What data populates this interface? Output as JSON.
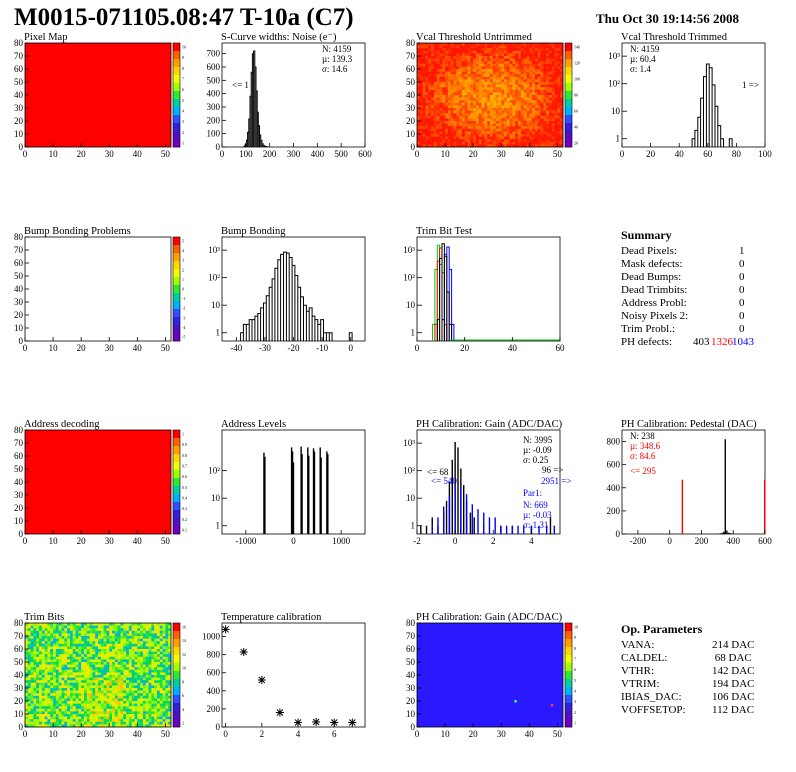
{
  "header": {
    "title": "M0015-071105.08:47 T-10a (C7)",
    "date": "Thu Oct 30 19:14:56 2008"
  },
  "colors": {
    "red": "#ff0000",
    "blue": "#0000ff",
    "green": "#00cc00",
    "black": "#000000",
    "map_dead": "#ff0000",
    "map_gain": "#2a18ff"
  },
  "chart_data": [
    {
      "id": "pixel_map",
      "type": "heatmap",
      "title": "Pixel Map",
      "xlim": [
        0,
        52
      ],
      "ylim": [
        0,
        80
      ],
      "xticks": [
        0,
        10,
        20,
        30,
        40,
        50
      ],
      "yticks": [
        0,
        10,
        20,
        30,
        40,
        50,
        60,
        70,
        80
      ],
      "fill": "uniform-red",
      "palette": "rainbow",
      "zticks": [
        "10",
        "9",
        "8",
        "7",
        "6",
        "5",
        "4",
        "3",
        "2",
        "1"
      ]
    },
    {
      "id": "scurve",
      "type": "histogram",
      "title": "S-Curve widths: Noise (e⁻)",
      "xlim": [
        0,
        600
      ],
      "ylim": [
        0,
        780
      ],
      "xticks": [
        0,
        100,
        200,
        300,
        400,
        500,
        600
      ],
      "yticks": [
        0,
        100,
        200,
        300,
        400,
        500,
        600,
        700
      ],
      "bin_width": 5,
      "x": [
        95,
        100,
        105,
        110,
        115,
        120,
        125,
        130,
        135,
        140,
        145,
        150,
        155,
        160,
        165,
        170,
        175,
        180,
        185,
        190
      ],
      "y": [
        5,
        20,
        50,
        110,
        210,
        380,
        560,
        700,
        720,
        600,
        420,
        260,
        160,
        90,
        50,
        25,
        12,
        6,
        3,
        1
      ],
      "stats": [
        "N: 4159",
        "µ: 139.3",
        "σ: 14.6"
      ],
      "annotations": [
        {
          "text": "<= 1",
          "color": "#000000"
        }
      ]
    },
    {
      "id": "vcal_untrimmed",
      "type": "heatmap",
      "title": "Vcal Threshold Untrimmed",
      "xlim": [
        0,
        52
      ],
      "ylim": [
        0,
        80
      ],
      "xticks": [
        0,
        10,
        20,
        30,
        40,
        50
      ],
      "yticks": [
        0,
        10,
        20,
        30,
        40,
        50,
        60,
        70,
        80
      ],
      "fill": "noise-orange-yellow",
      "palette": "rainbow",
      "zticks": [
        "140",
        "120",
        "100",
        "80",
        "60",
        "40",
        "20"
      ]
    },
    {
      "id": "vcal_trimmed",
      "type": "histogram",
      "title": "Vcal Threshold Trimmed",
      "log": true,
      "xlim": [
        0,
        100
      ],
      "ylim": [
        0.5,
        3000
      ],
      "xticks": [
        0,
        20,
        40,
        60,
        80,
        100
      ],
      "ytick_labels": [
        "1",
        "10",
        "10²",
        "10³"
      ],
      "bin_width": 2,
      "x": [
        50,
        52,
        54,
        56,
        58,
        60,
        62,
        64,
        66,
        68,
        70,
        76
      ],
      "y": [
        1,
        2,
        6,
        30,
        180,
        520,
        380,
        90,
        15,
        3,
        1,
        1
      ],
      "stats": [
        "N: 4159",
        "µ: 60.4",
        "σ:  1.4"
      ],
      "annotations": [
        {
          "text": "1 =>",
          "color": "#000000"
        }
      ]
    },
    {
      "id": "bump_problems",
      "type": "heatmap",
      "title": "Bump Bonding Problems",
      "xlim": [
        0,
        52
      ],
      "ylim": [
        0,
        80
      ],
      "xticks": [
        0,
        10,
        20,
        30,
        40,
        50
      ],
      "yticks": [
        0,
        10,
        20,
        30,
        40,
        50,
        60,
        70,
        80
      ],
      "fill": "empty",
      "palette": "rainbow",
      "zticks": [
        "5",
        "4",
        "3",
        "2",
        "1",
        "0",
        "-1",
        "-2",
        "-3",
        "-4",
        "-5"
      ]
    },
    {
      "id": "bump_bonding",
      "type": "histogram",
      "title": "Bump Bonding",
      "log": true,
      "xlim": [
        -45,
        5
      ],
      "ylim": [
        0.5,
        3000
      ],
      "xticks": [
        -40,
        -30,
        -20,
        -10,
        0
      ],
      "ytick_labels": [
        "1",
        "10",
        "10²",
        "10³"
      ],
      "bin_width": 1,
      "x": [
        -38,
        -37,
        -36,
        -35,
        -34,
        -33,
        -32,
        -31,
        -30,
        -29,
        -28,
        -27,
        -26,
        -25,
        -24,
        -23,
        -22,
        -21,
        -20,
        -19,
        -18,
        -17,
        -16,
        -15,
        -14,
        -13,
        -12,
        -11,
        -10,
        -9,
        -8,
        -7,
        0
      ],
      "y": [
        1,
        2,
        2,
        3,
        3,
        4,
        5,
        8,
        12,
        22,
        45,
        90,
        220,
        450,
        700,
        850,
        780,
        540,
        280,
        120,
        45,
        20,
        10,
        6,
        8,
        4,
        3,
        2,
        3,
        1,
        1,
        1,
        1
      ]
    },
    {
      "id": "trim_bit_test",
      "type": "histogram",
      "title": "Trim Bit Test",
      "log": true,
      "xlim": [
        0,
        60
      ],
      "ylim": [
        0.5,
        3000
      ],
      "xticks": [
        0,
        20,
        40,
        60
      ],
      "ytick_labels": [
        "1",
        "10",
        "10²",
        "10³"
      ],
      "series": [
        {
          "name": "",
          "color": "#00cc00",
          "x": [
            7,
            8,
            9,
            10,
            11
          ],
          "y": [
            2,
            200,
            1500,
            300,
            3
          ]
        },
        {
          "name": "",
          "color": "#ff0000",
          "x": [
            8,
            9,
            10,
            11,
            12
          ],
          "y": [
            2,
            400,
            1200,
            150,
            2
          ]
        },
        {
          "name": "",
          "color": "#0000ff",
          "x": [
            11,
            12,
            13,
            14,
            15
          ],
          "y": [
            3,
            700,
            1300,
            200,
            2
          ]
        },
        {
          "name": "",
          "color": "#000000",
          "x": [
            9,
            10,
            11,
            12,
            13,
            14
          ],
          "y": [
            3,
            500,
            1700,
            600,
            30,
            2
          ]
        }
      ]
    },
    {
      "id": "address_decoding",
      "type": "heatmap",
      "title": "Address decoding",
      "xlim": [
        0,
        52
      ],
      "ylim": [
        0,
        80
      ],
      "xticks": [
        0,
        10,
        20,
        30,
        40,
        50
      ],
      "yticks": [
        0,
        10,
        20,
        30,
        40,
        50,
        60,
        70,
        80
      ],
      "fill": "uniform-red",
      "palette": "rainbow",
      "zticks": [
        "1",
        "0.9",
        "0.8",
        "0.7",
        "0.6",
        "0.5",
        "0.4",
        "0.3",
        "0.2",
        "0.1"
      ]
    },
    {
      "id": "address_levels",
      "type": "histogram",
      "title": "Address Levels",
      "log": true,
      "xlim": [
        -1500,
        1500
      ],
      "ylim": [
        0.5,
        3000
      ],
      "xticks": [
        -1000,
        0,
        1000
      ],
      "ytick_labels": [
        "1",
        "10",
        "10²"
      ],
      "x": [
        -620,
        -600,
        -40,
        -20,
        0,
        160,
        180,
        300,
        320,
        420,
        440,
        560,
        580,
        700,
        720
      ],
      "y": [
        450,
        320,
        700,
        500,
        200,
        750,
        400,
        700,
        350,
        650,
        500,
        700,
        300,
        500,
        400
      ]
    },
    {
      "id": "ph_gain",
      "type": "histogram",
      "title": "PH Calibration: Gain (ADC/DAC)",
      "log": true,
      "xlim": [
        -2,
        5.5
      ],
      "ylim": [
        0.5,
        3000
      ],
      "xticks": [
        -2,
        0,
        2,
        4
      ],
      "ytick_labels": [
        "1",
        "10",
        "10²",
        "10³"
      ],
      "series": [
        {
          "name": "",
          "color": "#000000",
          "x": [
            -1.8,
            -1.5,
            -1.2,
            -0.9,
            -0.6,
            -0.45,
            -0.3,
            -0.15,
            0,
            0.15,
            0.3,
            0.45,
            0.6,
            0.8,
            1.0,
            1.5,
            2.4,
            3.0,
            4.0,
            5.0
          ],
          "y": [
            1,
            1,
            2,
            1,
            3,
            8,
            40,
            250,
            1100,
            700,
            120,
            30,
            8,
            3,
            2,
            1,
            1,
            1,
            1,
            2
          ]
        },
        {
          "name": "",
          "color": "#0000ff",
          "x": [
            -1.2,
            -0.9,
            -0.6,
            -0.3,
            0,
            0.3,
            0.6,
            0.9,
            1.2,
            1.5,
            1.8,
            2.1,
            2.4,
            2.7,
            3.0,
            3.3,
            3.6,
            4.0,
            4.4,
            4.8,
            5.2
          ],
          "y": [
            1,
            2,
            5,
            12,
            30,
            25,
            14,
            6,
            4,
            3,
            2,
            2,
            1,
            1,
            1,
            1,
            1,
            1,
            1,
            1,
            1
          ]
        }
      ],
      "stats": [
        "N: 3995",
        "µ: -0.09",
        "σ: 0.25"
      ],
      "stats2": [
        "N:  669",
        "µ: -0.03",
        "σ: 1.31"
      ],
      "stats2_title": "Par1:",
      "annotations": [
        {
          "text": "<= 68",
          "color": "#000000"
        },
        {
          "text": "96 =>",
          "color": "#000000"
        },
        {
          "text": "<= 540",
          "color": "#0000ff"
        },
        {
          "text": "2951 =>",
          "color": "#0000ff"
        }
      ]
    },
    {
      "id": "ph_pedestal",
      "type": "histogram",
      "title": "PH Calibration: Pedestal (DAC)",
      "xlim": [
        -300,
        600
      ],
      "ylim": [
        0,
        900
      ],
      "xticks": [
        -200,
        0,
        200,
        400,
        600
      ],
      "yticks": [
        0,
        200,
        400,
        600,
        800
      ],
      "series": [
        {
          "name": "",
          "color": "#000000",
          "x": [
            300,
            310,
            320,
            330,
            340,
            350,
            360,
            370,
            380,
            390,
            400,
            420,
            440
          ],
          "y": [
            2,
            4,
            6,
            10,
            20,
            820,
            30,
            12,
            8,
            5,
            3,
            2,
            1
          ]
        },
        {
          "name": "",
          "color": "#ff0000",
          "x": [
            80,
            598
          ],
          "y": [
            470,
            470
          ]
        }
      ],
      "stats": [
        "N:  238"
      ],
      "stats_red": [
        "µ: 348.6",
        "σ: 84.6"
      ],
      "annotations": [
        {
          "text": "<= 295",
          "color": "#ff0000"
        }
      ]
    },
    {
      "id": "trim_bits",
      "type": "heatmap",
      "title": "Trim Bits",
      "xlim": [
        0,
        52
      ],
      "ylim": [
        0,
        80
      ],
      "xticks": [
        0,
        10,
        20,
        30,
        40,
        50
      ],
      "yticks": [
        0,
        10,
        20,
        30,
        40,
        50,
        60,
        70,
        80
      ],
      "fill": "noise-green-yellow",
      "palette": "rainbow",
      "zticks": [
        "16",
        "14",
        "12",
        "10",
        "8",
        "6",
        "4",
        "2"
      ]
    },
    {
      "id": "temperature",
      "type": "scatter",
      "title": "Temperature calibration",
      "xlim": [
        -0.2,
        7.7
      ],
      "ylim": [
        0,
        1150
      ],
      "xticks": [
        0,
        2,
        4,
        6
      ],
      "yticks": [
        0,
        200,
        400,
        600,
        800,
        1000
      ],
      "x": [
        0,
        1,
        2,
        3,
        4,
        5,
        6,
        7
      ],
      "y": [
        1080,
        830,
        520,
        160,
        50,
        55,
        50,
        50
      ]
    },
    {
      "id": "ph_gain_map",
      "type": "heatmap",
      "title": "PH Calibration: Gain (ADC/DAC)",
      "xlim": [
        0,
        52
      ],
      "ylim": [
        0,
        80
      ],
      "xticks": [
        0,
        10,
        20,
        30,
        40,
        50
      ],
      "yticks": [
        0,
        10,
        20,
        30,
        40,
        50,
        60,
        70,
        80
      ],
      "fill": "uniform-blue",
      "palette": "rainbow",
      "zticks": [
        "10",
        "9",
        "8",
        "7",
        "6",
        "5",
        "4",
        "3",
        "2",
        "1"
      ],
      "hot_pixels": [
        {
          "x": 35,
          "y": 20,
          "color": "#40ff60"
        },
        {
          "x": 48,
          "y": 17,
          "color": "#ff4040"
        }
      ]
    }
  ],
  "summary": {
    "title": "Summary",
    "rows": [
      {
        "label": "Dead Pixels:",
        "value": "1"
      },
      {
        "label": "Mask defects:",
        "value": "0"
      },
      {
        "label": "Dead Bumps:",
        "value": "0"
      },
      {
        "label": "Dead Trimbits:",
        "value": "0"
      },
      {
        "label": "Address Probl:",
        "value": "0"
      },
      {
        "label": "Noisy Pixels 2:",
        "value": "0"
      },
      {
        "label": "Trim Probl.:",
        "value": "0"
      }
    ],
    "ph_label": "PH defects:",
    "ph_values": [
      "403",
      "1326",
      "1043"
    ]
  },
  "op_params": {
    "title": "Op. Parameters",
    "rows": [
      {
        "label": "VANA:",
        "value": "214 DAC"
      },
      {
        "label": "CALDEL:",
        "value": " 68 DAC"
      },
      {
        "label": "VTHR:",
        "value": "142 DAC"
      },
      {
        "label": "VTRIM:",
        "value": "194 DAC"
      },
      {
        "label": "IBIAS_DAC:",
        "value": "106 DAC"
      },
      {
        "label": "VOFFSETOP:",
        "value": "112 DAC"
      }
    ]
  }
}
